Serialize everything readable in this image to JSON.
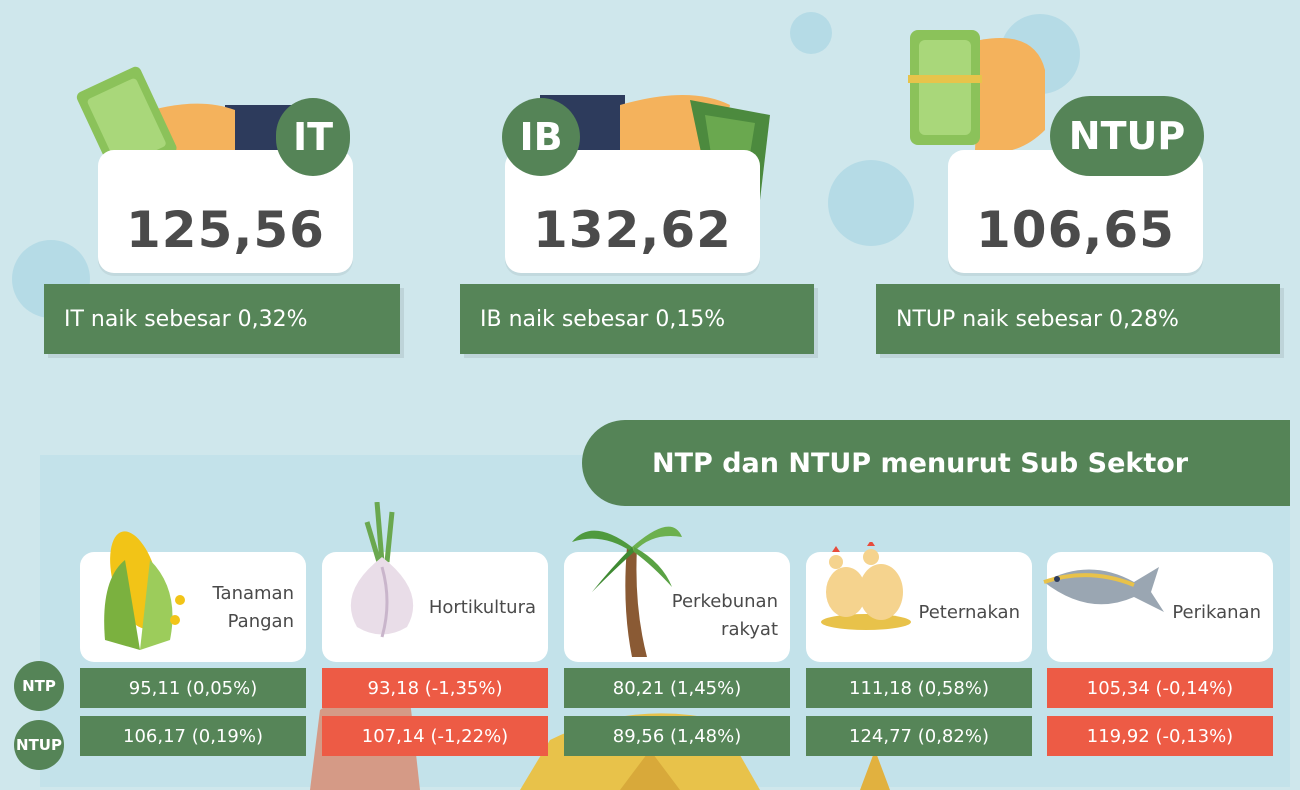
{
  "indicators": [
    {
      "badge": "IT",
      "value": "125,56",
      "note": "IT naik sebesar 0,32%"
    },
    {
      "badge": "IB",
      "value": "132,62",
      "note": "IB naik sebesar 0,15%"
    },
    {
      "badge": "NTUP",
      "value": "106,65",
      "note": "NTUP naik sebesar 0,28%"
    }
  ],
  "section_title": "NTP dan NTUP menurut Sub Sektor",
  "row_labels": {
    "ntp": "NTP",
    "ntup": "NTUP"
  },
  "subsectors": [
    {
      "label_line1": "Tanaman",
      "label_line2": "Pangan",
      "icon": "corn-icon",
      "ntp": "95,11 (0,05%)",
      "ntup": "106,17 (0,19%)"
    },
    {
      "label_line1": "Hortikultura",
      "label_line2": "",
      "icon": "garlic-icon",
      "ntp": "93,18 (-1,35%)",
      "ntup": "107,14 (-1,22%)"
    },
    {
      "label_line1": "Perkebunan",
      "label_line2": "rakyat",
      "icon": "palm-tree-icon",
      "ntp": "80,21 (1,45%)",
      "ntup": "89,56 (1,48%)"
    },
    {
      "label_line1": "Peternakan",
      "label_line2": "",
      "icon": "chicken-icon",
      "ntp": "111,18 (0,58%)",
      "ntup": "124,77 (0,82%)"
    },
    {
      "label_line1": "Perikanan",
      "label_line2": "",
      "icon": "fish-icon",
      "ntp": "105,34 (-0,14%)",
      "ntup": "119,92 (-0,13%)"
    }
  ],
  "colors": {
    "positive": "#568558",
    "negative": "#ed5b45",
    "background": "#cfe7ec"
  }
}
